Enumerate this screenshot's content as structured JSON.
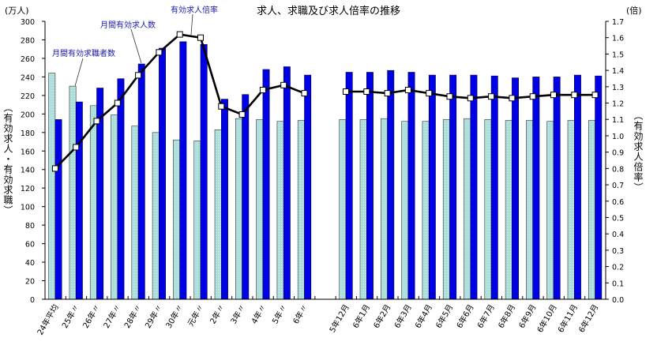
{
  "chart_data": {
    "type": "bar+line",
    "title": "求人、求職及び求人倍率の推移",
    "ylabel_left": "（有効求人・有効求職）",
    "ylabel_right": "（有効求人倍率）",
    "unit_left": "(万人)",
    "unit_right": "(倍)",
    "ylim_left": [
      0,
      300
    ],
    "ylim_right": [
      0.0,
      1.7
    ],
    "yticks_left": [
      0,
      20,
      40,
      60,
      80,
      100,
      120,
      140,
      160,
      180,
      200,
      220,
      240,
      260,
      280,
      300
    ],
    "yticks_right": [
      "0.0",
      "0.1",
      "0.2",
      "0.3",
      "0.4",
      "0.5",
      "0.6",
      "0.7",
      "0.8",
      "0.9",
      "1.0",
      "1.1",
      "1.2",
      "1.3",
      "1.4",
      "1.5",
      "1.6",
      "1.7"
    ],
    "grid": false,
    "groups": [
      {
        "name": "annual",
        "categories": [
          "24年平均",
          "25年〃",
          "26年〃",
          "27年〃",
          "28年〃",
          "29年〃",
          "30年〃",
          "元年〃",
          "2年〃",
          "3年〃",
          "4年〃",
          "5年〃",
          "6年〃"
        ]
      },
      {
        "name": "monthly",
        "categories": [
          "5年12月",
          "6年1月",
          "6年2月",
          "6年3月",
          "6年4月",
          "6年5月",
          "6年6月",
          "6年7月",
          "6年8月",
          "6年9月",
          "6年10月",
          "6年11月",
          "6年12月"
        ]
      }
    ],
    "series": [
      {
        "name": "月間有効求職者数",
        "type": "bar",
        "axis": "left",
        "color": "#a8dcd8",
        "values_annual": [
          244,
          230,
          209,
          199,
          187,
          180,
          172,
          171,
          183,
          195,
          194,
          192,
          193
        ],
        "values_monthly": [
          194,
          194,
          195,
          192,
          192,
          194,
          195,
          194,
          193,
          193,
          192,
          193,
          193
        ]
      },
      {
        "name": "月間有効求人数",
        "type": "bar",
        "axis": "left",
        "color": "#0000e6",
        "values_annual": [
          194,
          213,
          228,
          238,
          254,
          271,
          278,
          275,
          216,
          221,
          248,
          251,
          242
        ],
        "values_monthly": [
          245,
          245,
          247,
          245,
          242,
          242,
          242,
          241,
          239,
          240,
          240,
          242,
          241
        ]
      },
      {
        "name": "有効求人倍率",
        "type": "line",
        "axis": "right",
        "color": "#000000",
        "values_annual": [
          0.8,
          0.93,
          1.09,
          1.2,
          1.37,
          1.51,
          1.62,
          1.6,
          1.18,
          1.13,
          1.28,
          1.31,
          1.26
        ],
        "values_monthly": [
          1.27,
          1.27,
          1.26,
          1.28,
          1.26,
          1.24,
          1.23,
          1.24,
          1.23,
          1.24,
          1.25,
          1.25,
          1.25
        ]
      }
    ],
    "annotations": [
      {
        "text": "有効求人倍率",
        "x": 216,
        "y": 4,
        "line": [
          244,
          18,
          242,
          44
        ]
      },
      {
        "text": "月間有効求人数",
        "x": 127,
        "y": 23,
        "line": [
          166,
          37,
          179,
          80
        ]
      },
      {
        "text": "月間有効求職者数",
        "x": 66,
        "y": 59,
        "line": [
          105,
          74,
          95,
          109
        ]
      }
    ]
  }
}
